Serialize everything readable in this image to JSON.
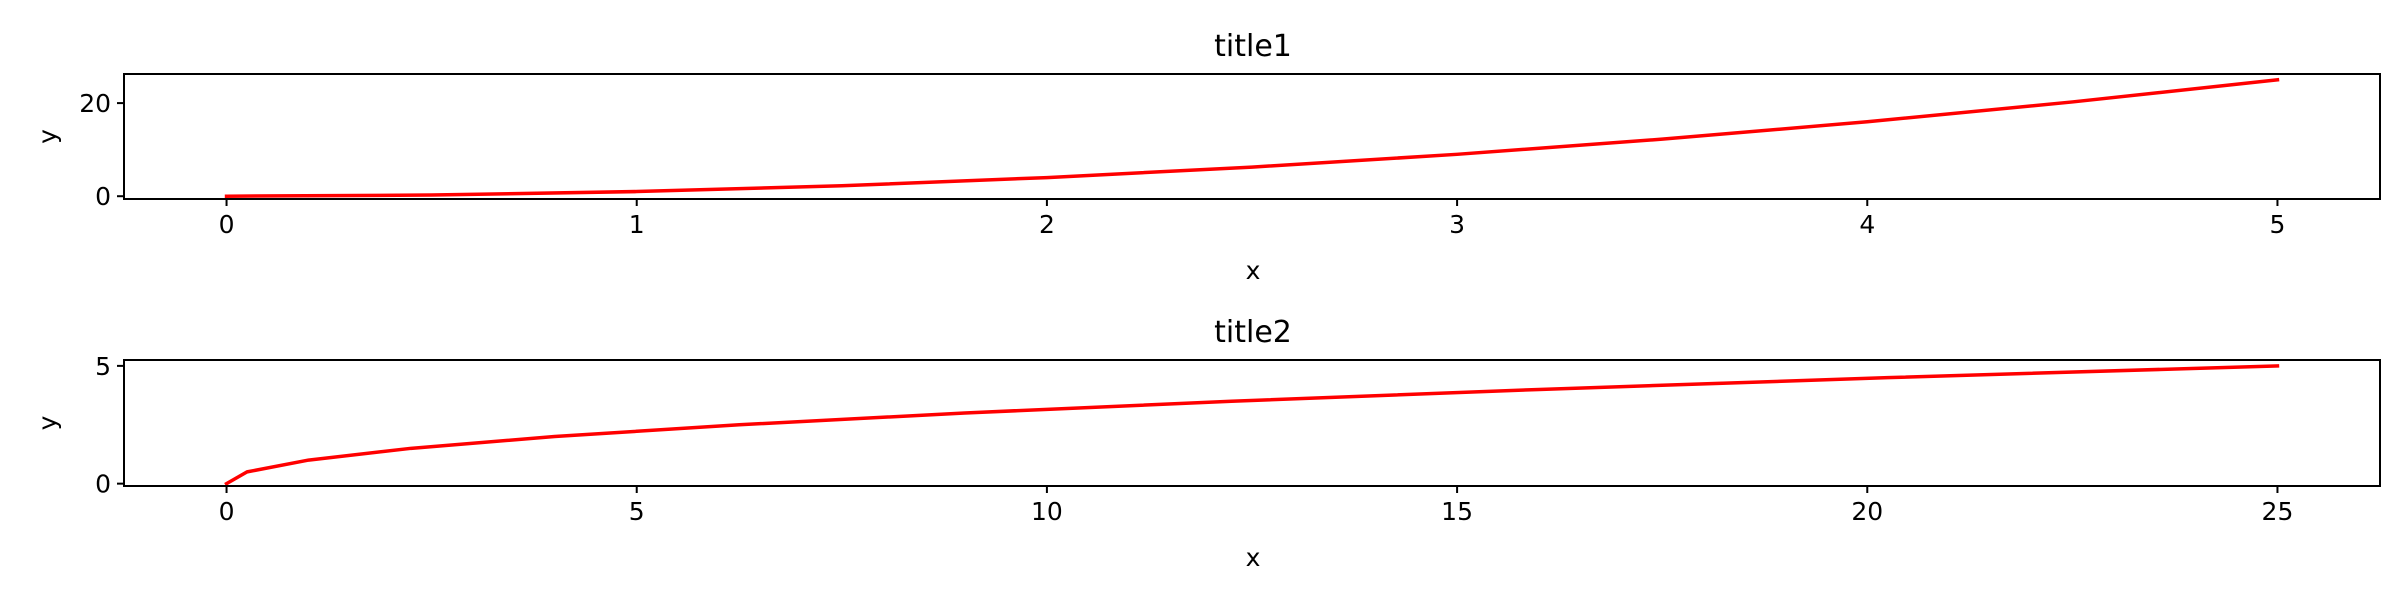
{
  "chart_data": [
    {
      "type": "line",
      "title": "title1",
      "xlabel": "x",
      "ylabel": "y",
      "xlim": [
        -0.25,
        5.25
      ],
      "ylim": [
        -0.6,
        26.25
      ],
      "xticks": [
        0,
        1,
        2,
        3,
        4,
        5
      ],
      "yticks": [
        0,
        20
      ],
      "grid": false,
      "series": [
        {
          "color": "#ff0000",
          "x": [
            0,
            0.5,
            1,
            1.5,
            2,
            2.5,
            3,
            3.5,
            4,
            4.5,
            5
          ],
          "y": [
            0,
            0.25,
            1,
            2.25,
            4,
            6.25,
            9,
            12.25,
            16,
            20.25,
            25
          ]
        }
      ]
    },
    {
      "type": "line",
      "title": "title2",
      "xlabel": "x",
      "ylabel": "y",
      "xlim": [
        -1.25,
        26.25
      ],
      "ylim": [
        -0.1,
        5.25
      ],
      "xticks": [
        0,
        5,
        10,
        15,
        20,
        25
      ],
      "yticks": [
        0,
        5
      ],
      "grid": false,
      "series": [
        {
          "color": "#ff0000",
          "x": [
            0,
            0.25,
            1,
            2.25,
            4,
            6.25,
            9,
            12.25,
            16,
            20.25,
            25
          ],
          "y": [
            0,
            0.5,
            1,
            1.5,
            2,
            2.5,
            3,
            3.5,
            4,
            4.5,
            5
          ]
        }
      ]
    }
  ]
}
